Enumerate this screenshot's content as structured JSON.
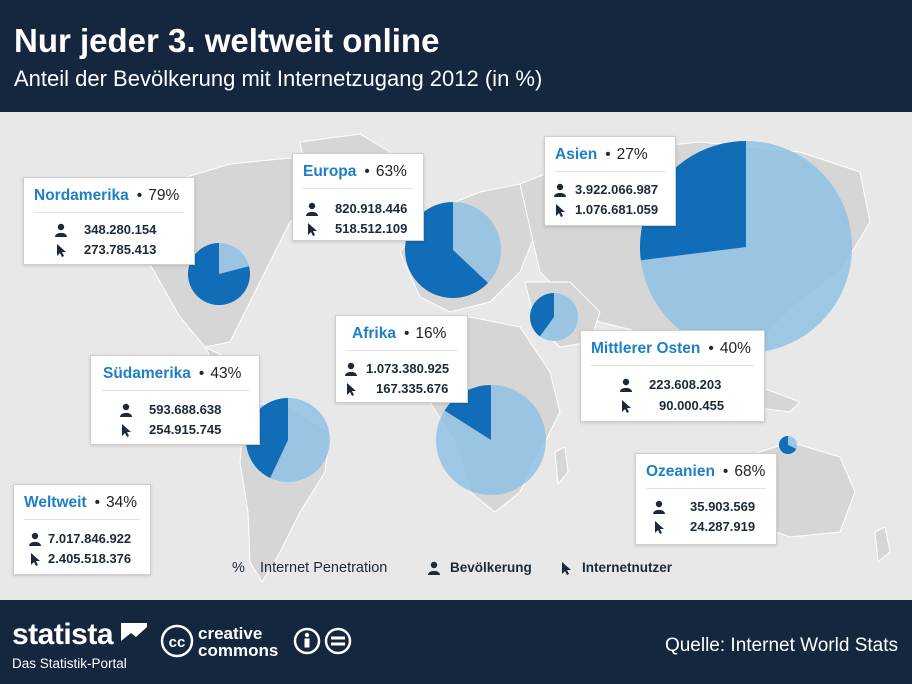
{
  "header": {
    "title": "Nur jeder 3. weltweit online",
    "subtitle": "Anteil der Bevölkerung mit Internetzugang 2012 (in %)"
  },
  "chart_data": {
    "type": "pie",
    "title": "Nur jeder 3. weltweit online",
    "subtitle": "Anteil der Bevölkerung mit Internetzugang 2012 (in %)",
    "regions": [
      {
        "name": "Nordamerika",
        "penetration": 79,
        "penetration_label": "79%",
        "population": "348.280.154",
        "users": "273.785.413"
      },
      {
        "name": "Europa",
        "penetration": 63,
        "penetration_label": "63%",
        "population": "820.918.446",
        "users": "518.512.109"
      },
      {
        "name": "Asien",
        "penetration": 27,
        "penetration_label": "27%",
        "population": "3.922.066.987",
        "users": "1.076.681.059"
      },
      {
        "name": "Afrika",
        "penetration": 16,
        "penetration_label": "16%",
        "population": "1.073.380.925",
        "users": "167.335.676"
      },
      {
        "name": "Mittlerer Osten",
        "penetration": 40,
        "penetration_label": "40%",
        "population": "223.608.203",
        "users": "90.000.455"
      },
      {
        "name": "Südamerika",
        "penetration": 43,
        "penetration_label": "43%",
        "population": "593.688.638",
        "users": "254.915.745"
      },
      {
        "name": "Ozeanien",
        "penetration": 68,
        "penetration_label": "68%",
        "population": "35.903.569",
        "users": "24.287.919"
      }
    ],
    "world": {
      "name": "Weltweit",
      "penetration": 34,
      "penetration_label": "34%",
      "population": "7.017.846.922",
      "users": "2.405.518.376"
    },
    "colors": {
      "internet_users": "#0a68b4",
      "rest": "#8ec1e4"
    }
  },
  "legend": {
    "percent_symbol": "%",
    "penetration_label": "Internet Penetration",
    "population_label": "Bevölkerung",
    "users_label": "Internetnutzer"
  },
  "footer": {
    "brand": "statista",
    "portal": "Das Statistik-Portal",
    "cc_line1": "creative",
    "cc_line2": "commons",
    "source": "Quelle: Internet World Stats"
  }
}
